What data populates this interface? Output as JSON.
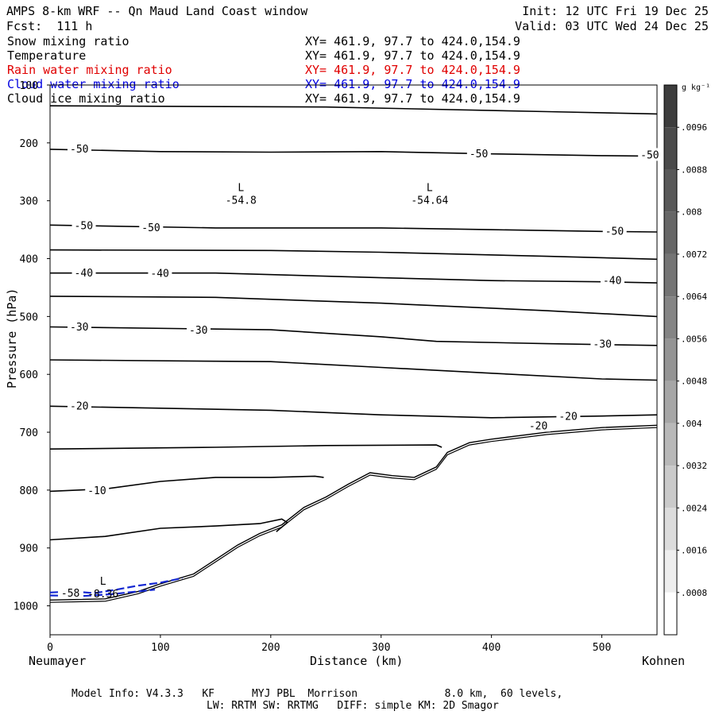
{
  "header": {
    "title": "AMPS 8-km WRF -- Qn Maud Land Coast window",
    "init": "Init: 12 UTC Fri 19 Dec 25",
    "fcst": "Fcst:  111 h",
    "valid": "Valid: 03 UTC Wed 24 Dec 25"
  },
  "fields": [
    {
      "name": "Snow mixing ratio",
      "xy": "XY= 461.9, 97.7 to 424.0,154.9",
      "color": "#000000"
    },
    {
      "name": "Temperature",
      "xy": "XY= 461.9, 97.7 to 424.0,154.9",
      "color": "#000000"
    },
    {
      "name": "Rain water mixing ratio",
      "xy": "XY= 461.9, 97.7 to 424.0,154.9",
      "color": "#e00000"
    },
    {
      "name": "Cloud water mixing ratio",
      "xy": "XY= 461.9, 97.7 to 424.0,154.9",
      "color": "#0000e0"
    },
    {
      "name": "Cloud ice mixing ratio",
      "xy": "XY= 461.9, 97.7 to 424.0,154.9",
      "color": "#000000"
    }
  ],
  "colorbar": {
    "unit": "g kg⁻¹",
    "labels": [
      ".0096",
      ".0088",
      ".008",
      ".0072",
      ".0064",
      ".0056",
      ".0048",
      ".004",
      ".0032",
      ".0024",
      ".0016",
      ".0008"
    ],
    "shades": [
      "#3c3c3c",
      "#4a4a4a",
      "#585858",
      "#666666",
      "#747474",
      "#848484",
      "#949494",
      "#a6a6a6",
      "#b8b8b8",
      "#cacaca",
      "#dcdcdc",
      "#eeeeee",
      "#ffffff"
    ]
  },
  "footer": {
    "line1": "Model Info: V4.3.3   KF      MYJ PBL  Morrison              8.0 km,  60 levels,",
    "line2": "LW: RRTM SW: RRTMG   DIFF: simple KM: 2D Smagor"
  },
  "chart_data": {
    "type": "line",
    "subtype": "vertical cross-section contour",
    "xlabel": "Distance (km)",
    "ylabel": "Pressure (hPa)",
    "xlim": [
      0,
      550
    ],
    "ylim": [
      1050,
      100
    ],
    "x_ticks": [
      0,
      100,
      200,
      300,
      400,
      500
    ],
    "y_ticks": [
      100,
      200,
      300,
      400,
      500,
      600,
      700,
      800,
      900,
      1000
    ],
    "x_start_label": "Neumayer",
    "x_end_label": "Kohnen",
    "isotherms": [
      {
        "name": "-55 line",
        "points": [
          [
            0,
            136
          ],
          [
            250,
            138
          ],
          [
            450,
            146
          ],
          [
            550,
            150
          ]
        ]
      },
      {
        "name": "-50 upper",
        "points": [
          [
            0,
            211
          ],
          [
            100,
            215
          ],
          [
            200,
            216
          ],
          [
            300,
            215
          ],
          [
            400,
            219
          ],
          [
            500,
            222
          ],
          [
            550,
            223
          ]
        ]
      },
      {
        "name": "-50 lower",
        "points": [
          [
            0,
            342
          ],
          [
            150,
            347
          ],
          [
            300,
            347
          ],
          [
            400,
            350
          ],
          [
            500,
            353
          ],
          [
            550,
            354
          ]
        ]
      },
      {
        "name": "-45",
        "points": [
          [
            0,
            385
          ],
          [
            200,
            386
          ],
          [
            300,
            389
          ],
          [
            450,
            396
          ],
          [
            550,
            401
          ]
        ]
      },
      {
        "name": "-40",
        "points": [
          [
            0,
            425
          ],
          [
            150,
            425
          ],
          [
            300,
            433
          ],
          [
            400,
            438
          ],
          [
            500,
            440
          ],
          [
            550,
            442
          ]
        ]
      },
      {
        "name": "-35",
        "points": [
          [
            0,
            465
          ],
          [
            150,
            467
          ],
          [
            300,
            477
          ],
          [
            450,
            490
          ],
          [
            550,
            500
          ]
        ]
      },
      {
        "name": "-30",
        "points": [
          [
            0,
            518
          ],
          [
            200,
            523
          ],
          [
            300,
            535
          ],
          [
            350,
            543
          ],
          [
            450,
            547
          ],
          [
            550,
            550
          ]
        ]
      },
      {
        "name": "-25",
        "points": [
          [
            0,
            575
          ],
          [
            200,
            578
          ],
          [
            300,
            588
          ],
          [
            400,
            598
          ],
          [
            500,
            608
          ],
          [
            550,
            610
          ]
        ]
      },
      {
        "name": "-20",
        "points": [
          [
            0,
            655
          ],
          [
            200,
            662
          ],
          [
            300,
            670
          ],
          [
            400,
            675
          ],
          [
            500,
            672
          ],
          [
            550,
            670
          ]
        ]
      },
      {
        "name": "-15",
        "points": [
          [
            0,
            729
          ],
          [
            150,
            726
          ],
          [
            250,
            723
          ],
          [
            350,
            722
          ],
          [
            355,
            726
          ]
        ]
      },
      {
        "name": "-10",
        "points": [
          [
            0,
            802
          ],
          [
            50,
            798
          ],
          [
            100,
            785
          ],
          [
            150,
            778
          ],
          [
            200,
            778
          ],
          [
            240,
            776
          ],
          [
            248,
            778
          ]
        ]
      },
      {
        "name": "-5",
        "points": [
          [
            0,
            886
          ],
          [
            50,
            880
          ],
          [
            100,
            866
          ],
          [
            150,
            862
          ],
          [
            190,
            858
          ],
          [
            210,
            850
          ],
          [
            215,
            856
          ],
          [
            205,
            872
          ]
        ]
      }
    ],
    "terrain": [
      [
        0,
        990
      ],
      [
        50,
        988
      ],
      [
        80,
        975
      ],
      [
        100,
        962
      ],
      [
        130,
        945
      ],
      [
        150,
        920
      ],
      [
        170,
        895
      ],
      [
        190,
        875
      ],
      [
        210,
        860
      ],
      [
        230,
        830
      ],
      [
        250,
        812
      ],
      [
        270,
        790
      ],
      [
        290,
        770
      ],
      [
        310,
        775
      ],
      [
        330,
        778
      ],
      [
        350,
        760
      ],
      [
        360,
        735
      ],
      [
        380,
        718
      ],
      [
        400,
        712
      ],
      [
        450,
        700
      ],
      [
        500,
        692
      ],
      [
        550,
        688
      ]
    ],
    "contour_labels": [
      {
        "text": "-50",
        "x": 18,
        "p": 210
      },
      {
        "text": "-50",
        "x": 380,
        "p": 218
      },
      {
        "text": "-50",
        "x": 535,
        "p": 220
      },
      {
        "text": "-50",
        "x": 22,
        "p": 342
      },
      {
        "text": "-50",
        "x": 83,
        "p": 346
      },
      {
        "text": "-50",
        "x": 503,
        "p": 352
      },
      {
        "text": "-40",
        "x": 22,
        "p": 424
      },
      {
        "text": "-40",
        "x": 91,
        "p": 425
      },
      {
        "text": "-40",
        "x": 501,
        "p": 437
      },
      {
        "text": "-30",
        "x": 18,
        "p": 517
      },
      {
        "text": "-30",
        "x": 126,
        "p": 523
      },
      {
        "text": "-30",
        "x": 492,
        "p": 547
      },
      {
        "text": "-20",
        "x": 18,
        "p": 654
      },
      {
        "text": "-20",
        "x": 461,
        "p": 672
      },
      {
        "text": "-20",
        "x": 434,
        "p": 688
      },
      {
        "text": "-10",
        "x": 34,
        "p": 800
      },
      {
        "text": "-58",
        "x": 10,
        "p": 977
      }
    ],
    "extrema": [
      {
        "type": "L",
        "value": "-54.8",
        "x": 173,
        "p": 300
      },
      {
        "type": "L",
        "value": "-54.64",
        "x": 344,
        "p": 300
      },
      {
        "type": "L",
        "value": "-8.36",
        "x": 48,
        "p": 980
      }
    ],
    "cloud_water_contours": [
      {
        "points": [
          [
            0,
            977
          ],
          [
            20,
            975
          ],
          [
            40,
            978
          ],
          [
            60,
            972
          ],
          [
            80,
            965
          ],
          [
            100,
            960
          ],
          [
            120,
            952
          ]
        ]
      },
      {
        "points": [
          [
            0,
            982
          ],
          [
            30,
            983
          ],
          [
            55,
            980
          ],
          [
            75,
            976
          ],
          [
            95,
            972
          ]
        ]
      }
    ]
  }
}
